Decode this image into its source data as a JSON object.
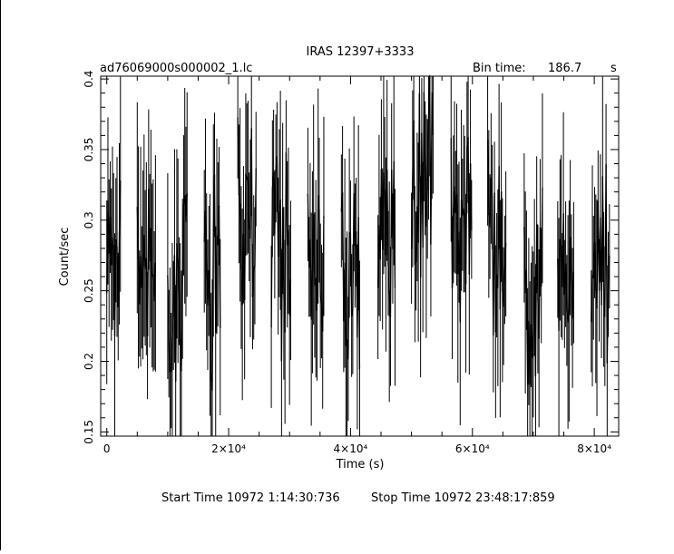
{
  "chart_data": {
    "type": "line",
    "title": "IRAS 12397+3333",
    "subtitle_left": "ad76069000s000002_1.lc",
    "bin_time_label": "Bin time:",
    "bin_time_value": "186.7",
    "bin_time_unit": "s",
    "xlabel": "Time (s)",
    "ylabel": "Count/sec",
    "xlim": [
      -1000,
      84000
    ],
    "ylim": [
      0.147,
      0.402
    ],
    "xticks": [
      {
        "value": 0,
        "label": "0"
      },
      {
        "value": 20000,
        "label": "2×10⁴"
      },
      {
        "value": 40000,
        "label": "4×10⁴"
      },
      {
        "value": 60000,
        "label": "6×10⁴"
      },
      {
        "value": 80000,
        "label": "8×10⁴"
      }
    ],
    "yticks": [
      {
        "value": 0.15,
        "label": "0.15"
      },
      {
        "value": 0.2,
        "label": "0.2"
      },
      {
        "value": 0.25,
        "label": "0.25"
      },
      {
        "value": 0.3,
        "label": "0.3"
      },
      {
        "value": 0.35,
        "label": "0.35"
      },
      {
        "value": 0.4,
        "label": "0.4"
      }
    ],
    "grid": false,
    "error_bars": true,
    "segments": [
      [
        0,
        2300
      ],
      [
        5000,
        8100
      ],
      [
        10000,
        13300
      ],
      [
        16000,
        18800
      ],
      [
        21500,
        24500
      ],
      [
        27000,
        30300
      ],
      [
        33000,
        35700
      ],
      [
        38500,
        41600
      ],
      [
        44500,
        47400
      ],
      [
        50000,
        53600
      ],
      [
        56500,
        60000
      ],
      [
        62500,
        65500
      ],
      [
        68500,
        71600
      ],
      [
        74000,
        76800
      ],
      [
        79500,
        82500
      ]
    ],
    "segment_levels": [
      0.27,
      0.27,
      0.25,
      0.26,
      0.3,
      0.27,
      0.27,
      0.27,
      0.3,
      0.33,
      0.3,
      0.28,
      0.25,
      0.27,
      0.28
    ],
    "bin_width": 186.7,
    "footer_start": "Start Time 10972  1:14:30:736",
    "footer_stop": "Stop Time 10972 23:48:17:859"
  }
}
